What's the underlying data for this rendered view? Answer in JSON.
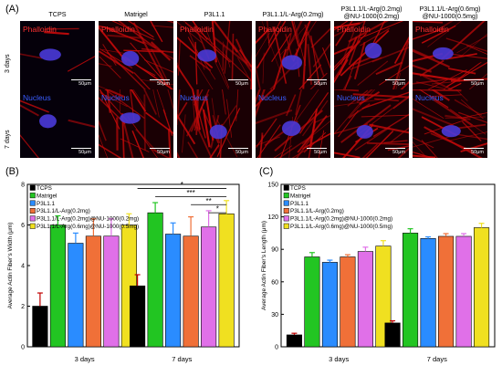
{
  "panel_labels": {
    "a": "(A)",
    "b": "(B)",
    "c": "(C)"
  },
  "panel_a": {
    "columns": [
      "TCPS",
      "Matrigel",
      "P3L1.1",
      "P3L1.1/L-Arg(0.2mg)",
      "P3L1.1/L-Arg(0.2mg)\n@NU-1000(0.2mg)",
      "P3L1.1/L-Arg(0.6mg)\n@NU-1000(0.5mg)"
    ],
    "rows": [
      {
        "label": "3 days",
        "stain": "Phalloidin",
        "stain_color": "#ff3030"
      },
      {
        "label": "7 days",
        "stain": "Nucleus",
        "stain_color": "#3a5cff"
      }
    ],
    "scale_label": "50μm",
    "colors": {
      "actin": "#c40a0a",
      "background": "#1a0004",
      "nucleus": "#4a3ad8"
    }
  },
  "chart_data": [
    {
      "type": "bar",
      "panel": "(B)",
      "ylabel": "Average Actin Fiber's Width (μm)",
      "ylim": [
        0,
        8
      ],
      "yticks": [
        0,
        2,
        4,
        6,
        8
      ],
      "categories": [
        "3 days",
        "7 days"
      ],
      "series": [
        {
          "name": "TCPS",
          "color": "#000000",
          "values": [
            2.0,
            3.0
          ],
          "errors": [
            0.65,
            0.55
          ]
        },
        {
          "name": "Matrigel",
          "color": "#22c522",
          "values": [
            6.0,
            6.6
          ],
          "errors": [
            0.45,
            0.5
          ]
        },
        {
          "name": "P3L1.1",
          "color": "#2a8cff",
          "values": [
            5.1,
            5.55
          ],
          "errors": [
            0.5,
            0.55
          ]
        },
        {
          "name": "P3L1.1/L-Arg(0.2mg)",
          "color": "#f07038",
          "values": [
            5.45,
            5.45
          ],
          "errors": [
            0.85,
            0.95
          ]
        },
        {
          "name": "P3L1.1/L-Arg(0.2mg)@NU-1000(0.2mg)",
          "color": "#e070e8",
          "values": [
            5.45,
            5.9
          ],
          "errors": [
            0.85,
            0.8
          ]
        },
        {
          "name": "P3L1.1/L-Arg(0.6mg)@NU-1000(0.5mg)",
          "color": "#f0e020",
          "values": [
            6.0,
            6.55
          ],
          "errors": [
            0.55,
            0.65
          ]
        }
      ],
      "significance": [
        "*",
        "***",
        "**",
        "*"
      ],
      "grid": false,
      "legend": "top-left"
    },
    {
      "type": "bar",
      "panel": "(C)",
      "ylabel": "Average Actin Fiber's Length (μm)",
      "ylim": [
        0,
        150
      ],
      "yticks": [
        0,
        30,
        60,
        90,
        120,
        150
      ],
      "categories": [
        "3 days",
        "7 days"
      ],
      "series": [
        {
          "name": "TCPS",
          "color": "#000000",
          "values": [
            11,
            22
          ],
          "errors": [
            1.5,
            2
          ]
        },
        {
          "name": "Matrigel",
          "color": "#22c522",
          "values": [
            83,
            105
          ],
          "errors": [
            4,
            4
          ]
        },
        {
          "name": "P3L1.1",
          "color": "#2a8cff",
          "values": [
            78,
            100
          ],
          "errors": [
            2,
            1.5
          ]
        },
        {
          "name": "P3L1.1/L-Arg(0.2mg)",
          "color": "#f07038",
          "values": [
            83,
            102
          ],
          "errors": [
            2,
            2.5
          ]
        },
        {
          "name": "P3L1.1/L-Arg(0.2mg)@NU-1000(0.2mg)",
          "color": "#e070e8",
          "values": [
            88,
            102
          ],
          "errors": [
            4,
            2.5
          ]
        },
        {
          "name": "P3L1.1/L-Arg(0.6mg)@NU-1000(0.5mg)",
          "color": "#f0e020",
          "values": [
            93,
            110
          ],
          "errors": [
            5,
            4
          ]
        }
      ],
      "grid": false,
      "legend": "top-left"
    }
  ]
}
